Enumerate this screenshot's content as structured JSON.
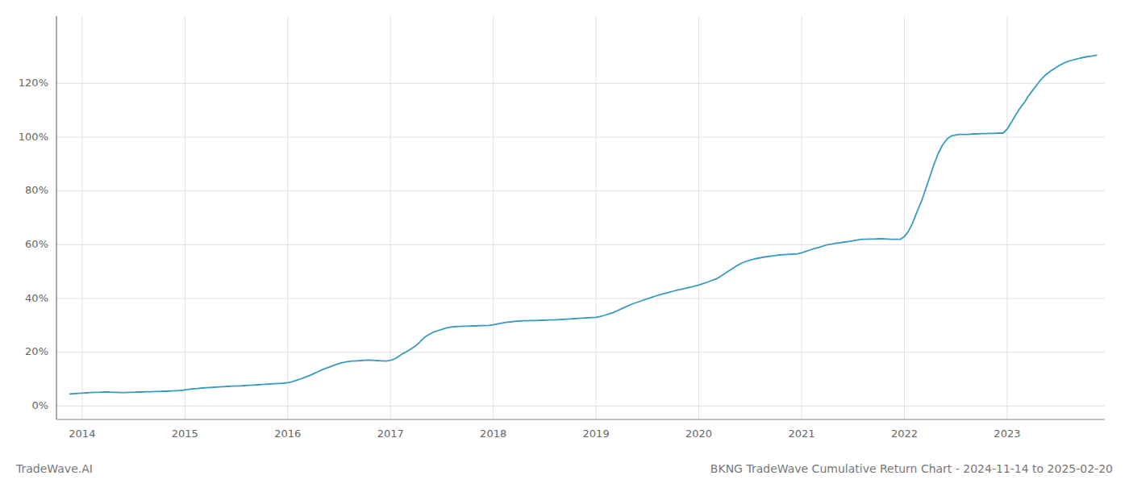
{
  "chart_data": {
    "type": "line",
    "title": "BKNG TradeWave Cumulative Return Chart - 2024-11-14 to 2025-02-20",
    "annotations": [
      "TradeWave.AI"
    ],
    "color": "#3a9abf",
    "grid": true,
    "x": [
      2013.88,
      2013.92,
      2013.96,
      2014.0,
      2014.04,
      2014.08,
      2014.12,
      2014.17,
      2014.21,
      2014.25,
      2014.29,
      2014.33,
      2014.37,
      2014.42,
      2014.46,
      2014.5,
      2014.54,
      2014.58,
      2014.62,
      2014.67,
      2014.71,
      2014.75,
      2014.79,
      2014.83,
      2014.87,
      2014.92,
      2014.96,
      2015.0,
      2015.04,
      2015.08,
      2015.12,
      2015.17,
      2015.21,
      2015.25,
      2015.29,
      2015.33,
      2015.37,
      2015.42,
      2015.46,
      2015.5,
      2015.54,
      2015.58,
      2015.62,
      2015.67,
      2015.71,
      2015.75,
      2015.79,
      2015.83,
      2015.87,
      2015.92,
      2015.96,
      2016.0,
      2016.04,
      2016.08,
      2016.12,
      2016.17,
      2016.21,
      2016.25,
      2016.29,
      2016.33,
      2016.37,
      2016.42,
      2016.46,
      2016.5,
      2016.54,
      2016.58,
      2016.62,
      2016.67,
      2016.71,
      2016.75,
      2016.79,
      2016.83,
      2016.87,
      2016.92,
      2016.96,
      2017.0,
      2017.04,
      2017.08,
      2017.12,
      2017.17,
      2017.21,
      2017.25,
      2017.29,
      2017.33,
      2017.37,
      2017.42,
      2017.46,
      2017.5,
      2017.54,
      2017.58,
      2017.62,
      2017.67,
      2017.71,
      2017.75,
      2017.79,
      2017.83,
      2017.87,
      2017.92,
      2017.96,
      2018.0,
      2018.04,
      2018.08,
      2018.12,
      2018.17,
      2018.21,
      2018.25,
      2018.29,
      2018.33,
      2018.37,
      2018.42,
      2018.46,
      2018.5,
      2018.54,
      2018.58,
      2018.62,
      2018.67,
      2018.71,
      2018.75,
      2018.79,
      2018.83,
      2018.87,
      2018.92,
      2018.96,
      2019.0,
      2019.04,
      2019.08,
      2019.12,
      2019.17,
      2019.21,
      2019.25,
      2019.29,
      2019.33,
      2019.37,
      2019.42,
      2019.46,
      2019.5,
      2019.54,
      2019.58,
      2019.62,
      2019.67,
      2019.71,
      2019.75,
      2019.79,
      2019.83,
      2019.87,
      2019.92,
      2019.96,
      2020.0,
      2020.04,
      2020.08,
      2020.12,
      2020.17,
      2020.21,
      2020.25,
      2020.29,
      2020.33,
      2020.37,
      2020.42,
      2020.46,
      2020.5,
      2020.54,
      2020.58,
      2020.62,
      2020.67,
      2020.71,
      2020.75,
      2020.79,
      2020.83,
      2020.87,
      2020.92,
      2020.96,
      2021.0,
      2021.04,
      2021.08,
      2021.12,
      2021.17,
      2021.21,
      2021.25,
      2021.29,
      2021.33,
      2021.37,
      2021.42,
      2021.46,
      2021.5,
      2021.54,
      2021.58,
      2021.62,
      2021.67,
      2021.71,
      2021.75,
      2021.79,
      2021.83,
      2021.87,
      2021.92,
      2021.96,
      2022.0,
      2022.04,
      2022.08,
      2022.12,
      2022.17,
      2022.21,
      2022.25,
      2022.29,
      2022.33,
      2022.37,
      2022.42,
      2022.46,
      2022.5,
      2022.54,
      2022.58,
      2022.62,
      2022.67,
      2022.71,
      2022.75,
      2022.79,
      2022.83,
      2022.87,
      2022.92,
      2022.96,
      2023.0,
      2023.04,
      2023.08,
      2023.12,
      2023.17,
      2023.21,
      2023.25,
      2023.29,
      2023.33,
      2023.37,
      2023.42,
      2023.46,
      2023.5,
      2023.54,
      2023.58,
      2023.62,
      2023.67,
      2023.71,
      2023.75,
      2023.79,
      2023.83,
      2023.87
    ],
    "values": [
      4.5,
      4.6,
      4.7,
      4.8,
      4.9,
      5.0,
      5.1,
      5.1,
      5.2,
      5.2,
      5.1,
      5.1,
      5.0,
      5.0,
      5.1,
      5.1,
      5.2,
      5.2,
      5.3,
      5.3,
      5.4,
      5.4,
      5.5,
      5.5,
      5.6,
      5.7,
      5.8,
      6.0,
      6.2,
      6.4,
      6.5,
      6.7,
      6.8,
      6.9,
      7.0,
      7.1,
      7.2,
      7.3,
      7.4,
      7.4,
      7.5,
      7.6,
      7.7,
      7.8,
      7.9,
      8.0,
      8.1,
      8.2,
      8.3,
      8.4,
      8.5,
      8.7,
      9.0,
      9.5,
      10.0,
      10.7,
      11.3,
      12.0,
      12.7,
      13.4,
      14.0,
      14.7,
      15.3,
      15.8,
      16.2,
      16.5,
      16.7,
      16.8,
      16.9,
      17.0,
      17.1,
      17.0,
      16.9,
      16.8,
      16.7,
      17.0,
      17.5,
      18.5,
      19.5,
      20.5,
      21.5,
      22.5,
      24.0,
      25.5,
      26.5,
      27.5,
      28.0,
      28.5,
      29.0,
      29.3,
      29.5,
      29.6,
      29.7,
      29.7,
      29.8,
      29.8,
      29.9,
      29.9,
      30.0,
      30.2,
      30.5,
      30.8,
      31.1,
      31.3,
      31.5,
      31.6,
      31.7,
      31.7,
      31.8,
      31.8,
      31.9,
      31.9,
      32.0,
      32.0,
      32.1,
      32.2,
      32.3,
      32.4,
      32.5,
      32.6,
      32.7,
      32.8,
      32.9,
      33.0,
      33.3,
      33.7,
      34.2,
      34.8,
      35.5,
      36.2,
      36.9,
      37.6,
      38.2,
      38.8,
      39.4,
      39.9,
      40.4,
      40.9,
      41.4,
      41.9,
      42.3,
      42.7,
      43.1,
      43.4,
      43.8,
      44.2,
      44.6,
      45.0,
      45.5,
      46.0,
      46.6,
      47.3,
      48.2,
      49.2,
      50.2,
      51.2,
      52.2,
      53.2,
      53.8,
      54.3,
      54.7,
      55.0,
      55.3,
      55.6,
      55.8,
      56.0,
      56.2,
      56.3,
      56.4,
      56.5,
      56.6,
      57.0,
      57.5,
      58.0,
      58.5,
      59.0,
      59.5,
      60.0,
      60.2,
      60.5,
      60.7,
      61.0,
      61.2,
      61.5,
      61.7,
      62.0,
      62.0,
      62.1,
      62.1,
      62.2,
      62.2,
      62.1,
      62.0,
      62.0,
      62.0,
      63.0,
      65.0,
      68.0,
      72.0,
      76.5,
      81.0,
      85.5,
      90.0,
      94.0,
      97.0,
      99.5,
      100.5,
      100.8,
      101.0,
      101.0,
      101.0,
      101.2,
      101.2,
      101.3,
      101.3,
      101.4,
      101.4,
      101.5,
      101.5,
      103.0,
      105.5,
      108.0,
      110.5,
      113.0,
      115.5,
      117.5,
      119.5,
      121.5,
      123.0,
      124.5,
      125.5,
      126.5,
      127.3,
      128.0,
      128.5,
      129.0,
      129.4,
      129.7,
      130.0,
      130.2,
      130.5
    ],
    "xlim": [
      2013.75,
      2023.95
    ],
    "xticks": [
      2014,
      2015,
      2016,
      2017,
      2018,
      2019,
      2020,
      2021,
      2022,
      2023
    ],
    "ylim": [
      -5,
      145
    ],
    "yticks": [
      {
        "value": 0,
        "label": "0%"
      },
      {
        "value": 20,
        "label": "20%"
      },
      {
        "value": 40,
        "label": "40%"
      },
      {
        "value": 60,
        "label": "60%"
      },
      {
        "value": 80,
        "label": "80%"
      },
      {
        "value": 100,
        "label": "100%"
      },
      {
        "value": 120,
        "label": "120%"
      }
    ]
  }
}
